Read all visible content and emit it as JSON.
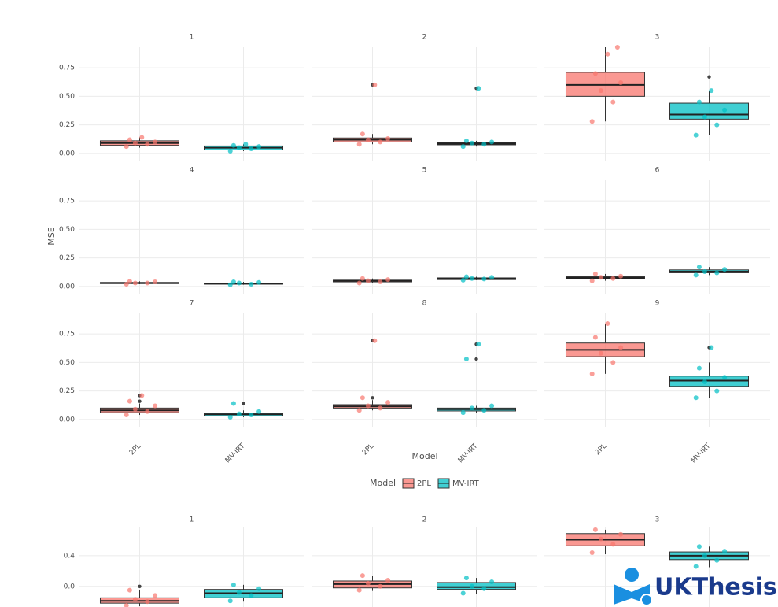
{
  "chart_data": [
    {
      "type": "boxplot",
      "y_label": "MSE",
      "x_label": "Model",
      "legend_title": "Model",
      "categories": [
        "2PL",
        "MV-IRT"
      ],
      "colors": [
        "#f8766d",
        "#00bfc4"
      ],
      "ylim": [
        -0.07,
        0.93
      ],
      "yticks": [
        {
          "value": 0,
          "label": "0.00"
        },
        {
          "value": 0.25,
          "label": "0.25"
        },
        {
          "value": 0.5,
          "label": "0.50"
        },
        {
          "value": 0.75,
          "label": "0.75"
        }
      ],
      "grid": true,
      "facets": [
        {
          "title": "1",
          "boxes": [
            {
              "min": 0.05,
              "q1": 0.07,
              "median": 0.09,
              "q3": 0.11,
              "max": 0.14,
              "outliers": [],
              "points": [
                0.06,
                0.08,
                0.09,
                0.1,
                0.12,
                0.14
              ]
            },
            {
              "min": 0.02,
              "q1": 0.03,
              "median": 0.05,
              "q3": 0.065,
              "max": 0.08,
              "outliers": [],
              "points": [
                0.02,
                0.04,
                0.05,
                0.06,
                0.07,
                0.08
              ]
            }
          ]
        },
        {
          "title": "2",
          "boxes": [
            {
              "min": 0.08,
              "q1": 0.1,
              "median": 0.12,
              "q3": 0.135,
              "max": 0.17,
              "outliers": [
                0.6
              ],
              "points": [
                0.08,
                0.1,
                0.12,
                0.13,
                0.17,
                0.6
              ]
            },
            {
              "min": 0.06,
              "q1": 0.075,
              "median": 0.085,
              "q3": 0.095,
              "max": 0.11,
              "outliers": [
                0.57
              ],
              "points": [
                0.06,
                0.08,
                0.09,
                0.1,
                0.11,
                0.57
              ]
            }
          ]
        },
        {
          "title": "3",
          "boxes": [
            {
              "min": 0.28,
              "q1": 0.5,
              "median": 0.6,
              "q3": 0.71,
              "max": 0.93,
              "outliers": [],
              "points": [
                0.28,
                0.45,
                0.55,
                0.62,
                0.7,
                0.87,
                0.93
              ]
            },
            {
              "min": 0.16,
              "q1": 0.3,
              "median": 0.34,
              "q3": 0.44,
              "max": 0.55,
              "outliers": [
                0.67
              ],
              "points": [
                0.16,
                0.25,
                0.32,
                0.38,
                0.45,
                0.55
              ]
            }
          ]
        },
        {
          "title": "4",
          "boxes": [
            {
              "min": 0.02,
              "q1": 0.025,
              "median": 0.03,
              "q3": 0.035,
              "max": 0.045,
              "outliers": [],
              "points": [
                0.02,
                0.03,
                0.03,
                0.04,
                0.045
              ]
            },
            {
              "min": 0.015,
              "q1": 0.02,
              "median": 0.025,
              "q3": 0.03,
              "max": 0.04,
              "outliers": [],
              "points": [
                0.015,
                0.02,
                0.03,
                0.035,
                0.04
              ]
            }
          ]
        },
        {
          "title": "5",
          "boxes": [
            {
              "min": 0.03,
              "q1": 0.04,
              "median": 0.05,
              "q3": 0.055,
              "max": 0.07,
              "outliers": [],
              "points": [
                0.03,
                0.04,
                0.05,
                0.06,
                0.07
              ]
            },
            {
              "min": 0.055,
              "q1": 0.06,
              "median": 0.07,
              "q3": 0.075,
              "max": 0.085,
              "outliers": [],
              "points": [
                0.055,
                0.065,
                0.07,
                0.08,
                0.085
              ]
            }
          ]
        },
        {
          "title": "6",
          "boxes": [
            {
              "min": 0.05,
              "q1": 0.065,
              "median": 0.075,
              "q3": 0.085,
              "max": 0.11,
              "outliers": [],
              "points": [
                0.05,
                0.07,
                0.08,
                0.09,
                0.11
              ]
            },
            {
              "min": 0.1,
              "q1": 0.12,
              "median": 0.13,
              "q3": 0.145,
              "max": 0.17,
              "outliers": [],
              "points": [
                0.1,
                0.12,
                0.13,
                0.15,
                0.17
              ]
            }
          ]
        },
        {
          "title": "7",
          "boxes": [
            {
              "min": 0.04,
              "q1": 0.06,
              "median": 0.08,
              "q3": 0.1,
              "max": 0.14,
              "outliers": [
                0.16,
                0.21
              ],
              "points": [
                0.04,
                0.07,
                0.09,
                0.12,
                0.16,
                0.21
              ]
            },
            {
              "min": 0.02,
              "q1": 0.03,
              "median": 0.045,
              "q3": 0.055,
              "max": 0.08,
              "outliers": [
                0.14
              ],
              "points": [
                0.02,
                0.04,
                0.05,
                0.07,
                0.14
              ]
            }
          ]
        },
        {
          "title": "8",
          "boxes": [
            {
              "min": 0.08,
              "q1": 0.1,
              "median": 0.115,
              "q3": 0.13,
              "max": 0.17,
              "outliers": [
                0.19,
                0.69
              ],
              "points": [
                0.08,
                0.1,
                0.12,
                0.15,
                0.19,
                0.69
              ]
            },
            {
              "min": 0.06,
              "q1": 0.075,
              "median": 0.09,
              "q3": 0.1,
              "max": 0.12,
              "outliers": [
                0.53,
                0.66
              ],
              "points": [
                0.06,
                0.08,
                0.1,
                0.12,
                0.53,
                0.66
              ]
            }
          ]
        },
        {
          "title": "9",
          "boxes": [
            {
              "min": 0.4,
              "q1": 0.55,
              "median": 0.61,
              "q3": 0.67,
              "max": 0.84,
              "outliers": [],
              "points": [
                0.4,
                0.5,
                0.58,
                0.63,
                0.72,
                0.84
              ]
            },
            {
              "min": 0.19,
              "q1": 0.29,
              "median": 0.34,
              "q3": 0.38,
              "max": 0.5,
              "outliers": [
                0.63
              ],
              "points": [
                0.19,
                0.25,
                0.33,
                0.37,
                0.45,
                0.63
              ]
            }
          ]
        }
      ]
    },
    {
      "type": "boxplot",
      "categories": [
        "2PL",
        "MV-IRT"
      ],
      "colors": [
        "#f8766d",
        "#00bfc4"
      ],
      "ylim": [
        -0.27,
        0.77
      ],
      "yticks": [
        {
          "value": 0,
          "label": "0.0"
        },
        0.4
      ],
      "grid": true,
      "facets": [
        {
          "title": "1",
          "boxes": [
            {
              "min": -0.26,
              "q1": -0.22,
              "median": -0.19,
              "q3": -0.15,
              "max": -0.05,
              "outliers": [
                0.0
              ],
              "points": [
                -0.25,
                -0.2,
                -0.17,
                -0.12,
                -0.05
              ]
            },
            {
              "min": -0.2,
              "q1": -0.15,
              "median": -0.09,
              "q3": -0.04,
              "max": 0.02,
              "outliers": [],
              "points": [
                -0.19,
                -0.12,
                -0.08,
                -0.03,
                0.02
              ]
            }
          ]
        },
        {
          "title": "2",
          "boxes": [
            {
              "min": -0.06,
              "q1": -0.02,
              "median": 0.03,
              "q3": 0.07,
              "max": 0.14,
              "outliers": [],
              "points": [
                -0.05,
                0.0,
                0.04,
                0.08,
                0.14
              ]
            },
            {
              "min": -0.1,
              "q1": -0.04,
              "median": -0.01,
              "q3": 0.05,
              "max": 0.11,
              "outliers": [],
              "points": [
                -0.09,
                -0.03,
                0.0,
                0.06,
                0.11
              ]
            }
          ]
        },
        {
          "title": "3",
          "boxes": [
            {
              "min": 0.42,
              "q1": 0.53,
              "median": 0.61,
              "q3": 0.69,
              "max": 0.74,
              "outliers": [],
              "points": [
                0.44,
                0.55,
                0.62,
                0.68,
                0.74
              ]
            },
            {
              "min": 0.25,
              "q1": 0.35,
              "median": 0.4,
              "q3": 0.45,
              "max": 0.52,
              "outliers": [],
              "points": [
                0.26,
                0.34,
                0.4,
                0.46,
                0.52
              ]
            }
          ]
        }
      ]
    }
  ],
  "watermark": "UKThesis"
}
